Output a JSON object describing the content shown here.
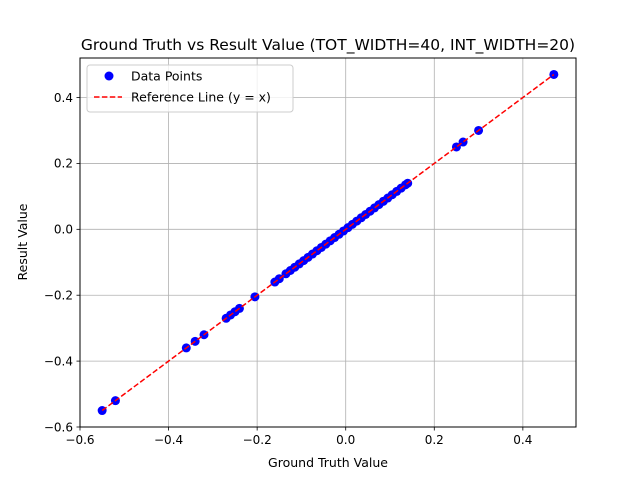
{
  "chart_data": {
    "type": "scatter",
    "title": "Ground Truth vs Result Value (TOT_WIDTH=40, INT_WIDTH=20)",
    "xlabel": "Ground Truth Value",
    "ylabel": "Result Value",
    "xlim": [
      -0.6,
      0.52
    ],
    "ylim": [
      -0.6,
      0.52
    ],
    "xticks": [
      -0.6,
      -0.4,
      -0.2,
      0.0,
      0.2,
      0.4
    ],
    "yticks": [
      -0.6,
      -0.4,
      -0.2,
      0.0,
      0.2,
      0.4
    ],
    "xtick_labels": [
      "−0.6",
      "−0.4",
      "−0.2",
      "0.0",
      "0.2",
      "0.4"
    ],
    "ytick_labels": [
      "−0.6",
      "−0.4",
      "−0.2",
      "0.0",
      "0.2",
      "0.4"
    ],
    "grid": true,
    "legend_position": "top-left",
    "series": [
      {
        "name": "Data Points",
        "kind": "scatter",
        "color": "#0000ff",
        "x": [
          -0.55,
          -0.52,
          -0.36,
          -0.34,
          -0.32,
          -0.27,
          -0.26,
          -0.25,
          -0.24,
          -0.205,
          -0.16,
          -0.15,
          -0.135,
          -0.125,
          -0.115,
          -0.105,
          -0.095,
          -0.085,
          -0.075,
          -0.065,
          -0.055,
          -0.045,
          -0.035,
          -0.025,
          -0.015,
          -0.005,
          0.005,
          0.015,
          0.025,
          0.035,
          0.045,
          0.055,
          0.065,
          0.075,
          0.085,
          0.095,
          0.105,
          0.115,
          0.125,
          0.135,
          0.14,
          0.25,
          0.265,
          0.3,
          0.47
        ],
        "y": [
          -0.55,
          -0.52,
          -0.36,
          -0.34,
          -0.32,
          -0.27,
          -0.26,
          -0.25,
          -0.24,
          -0.205,
          -0.16,
          -0.15,
          -0.135,
          -0.125,
          -0.115,
          -0.105,
          -0.095,
          -0.085,
          -0.075,
          -0.065,
          -0.055,
          -0.045,
          -0.035,
          -0.025,
          -0.015,
          -0.005,
          0.005,
          0.015,
          0.025,
          0.035,
          0.045,
          0.055,
          0.065,
          0.075,
          0.085,
          0.095,
          0.105,
          0.115,
          0.125,
          0.135,
          0.14,
          0.25,
          0.265,
          0.3,
          0.47
        ]
      },
      {
        "name": "Reference Line (y = x)",
        "kind": "line",
        "style": "dashed",
        "color": "#ff0000",
        "x": [
          -0.55,
          0.47
        ],
        "y": [
          -0.55,
          0.47
        ]
      }
    ]
  }
}
